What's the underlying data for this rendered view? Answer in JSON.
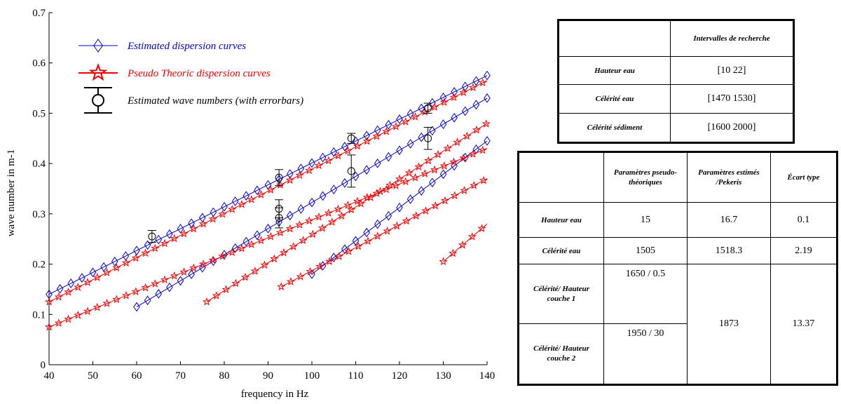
{
  "chart_data": {
    "type": "line",
    "xlabel": "frequency in Hz",
    "ylabel": "wave number in m-1",
    "xlim": [
      40,
      140
    ],
    "ylim": [
      0,
      0.7
    ],
    "xticks": [
      40,
      50,
      60,
      70,
      80,
      90,
      100,
      110,
      120,
      130,
      140
    ],
    "yticks": [
      0,
      0.1,
      0.2,
      0.3,
      0.4,
      0.5,
      0.6,
      0.7
    ],
    "grid": false,
    "legend": {
      "placement": "top-left",
      "entries": [
        {
          "label": "Estimated dispersion curves",
          "color": "#0000cc",
          "marker": "diamond"
        },
        {
          "label": "Pseudo Theoric dispersion curves",
          "color": "#ee0000",
          "marker": "star"
        },
        {
          "label": "Estimated wave numbers (with errorbars)",
          "color": "#000000",
          "marker": "circle-errorbar"
        }
      ]
    },
    "series": [
      {
        "group": "estimated",
        "color": "#0000cc",
        "marker": "diamond",
        "x": [
          40,
          140
        ],
        "y": [
          0.14,
          0.575
        ]
      },
      {
        "group": "estimated",
        "color": "#0000cc",
        "marker": "diamond",
        "x": [
          60,
          140
        ],
        "y": [
          0.115,
          0.53
        ]
      },
      {
        "group": "estimated",
        "color": "#0000cc",
        "marker": "diamond",
        "x": [
          100,
          140
        ],
        "y": [
          0.18,
          0.445
        ]
      },
      {
        "group": "theoretical",
        "color": "#ee0000",
        "marker": "star",
        "x": [
          40,
          140
        ],
        "y": [
          0.125,
          0.565
        ]
      },
      {
        "group": "theoretical",
        "color": "#ee0000",
        "marker": "star",
        "x": [
          40,
          140
        ],
        "y": [
          0.075,
          0.43
        ]
      },
      {
        "group": "theoretical",
        "color": "#ee0000",
        "marker": "star",
        "x": [
          76,
          140
        ],
        "y": [
          0.125,
          0.48
        ]
      },
      {
        "group": "theoretical",
        "color": "#ee0000",
        "marker": "star",
        "x": [
          93,
          140
        ],
        "y": [
          0.155,
          0.37
        ]
      },
      {
        "group": "theoretical",
        "color": "#ee0000",
        "marker": "star",
        "x": [
          130,
          140
        ],
        "y": [
          0.205,
          0.28
        ]
      }
    ],
    "points": [
      {
        "x": 63.5,
        "y": 0.255,
        "err": 0.012
      },
      {
        "x": 92.5,
        "y": 0.372,
        "err": 0.016
      },
      {
        "x": 92.5,
        "y": 0.31,
        "err": 0.018
      },
      {
        "x": 92.5,
        "y": 0.292,
        "err": 0.02
      },
      {
        "x": 109,
        "y": 0.45,
        "err": 0.01
      },
      {
        "x": 109,
        "y": 0.385,
        "err": 0.032
      },
      {
        "x": 126.5,
        "y": 0.51,
        "err": 0.01
      },
      {
        "x": 126.5,
        "y": 0.45,
        "err": 0.022
      }
    ]
  },
  "table1": {
    "header": "Intervalles de recherche",
    "rows": [
      {
        "label": "Hauteur eau",
        "value": "[10  22]"
      },
      {
        "label": "Célérité eau",
        "value": "[1470  1530]"
      },
      {
        "label": "Célérité sédiment",
        "value": "[1600  2000]"
      }
    ]
  },
  "table2": {
    "headers": [
      "Paramètres pseudo-théoriques",
      "Paramètres estimés /Pekeris",
      "Écart type"
    ],
    "rows": [
      {
        "label": "Hauteur eau",
        "pseudo": "15",
        "estim": "16.7",
        "ecart": "0.1"
      },
      {
        "label": "Célérité eau",
        "pseudo": "1505",
        "estim": "1518.3",
        "ecart": "2.19"
      },
      {
        "label": "Célérité/ Hauteur couche 1",
        "pseudo": "1650 / 0.5"
      },
      {
        "label": "Célérité/ Hauteur couche 2",
        "pseudo": "1950 / 30"
      }
    ],
    "merged_estim": "1873",
    "merged_ecart": "13.37"
  }
}
